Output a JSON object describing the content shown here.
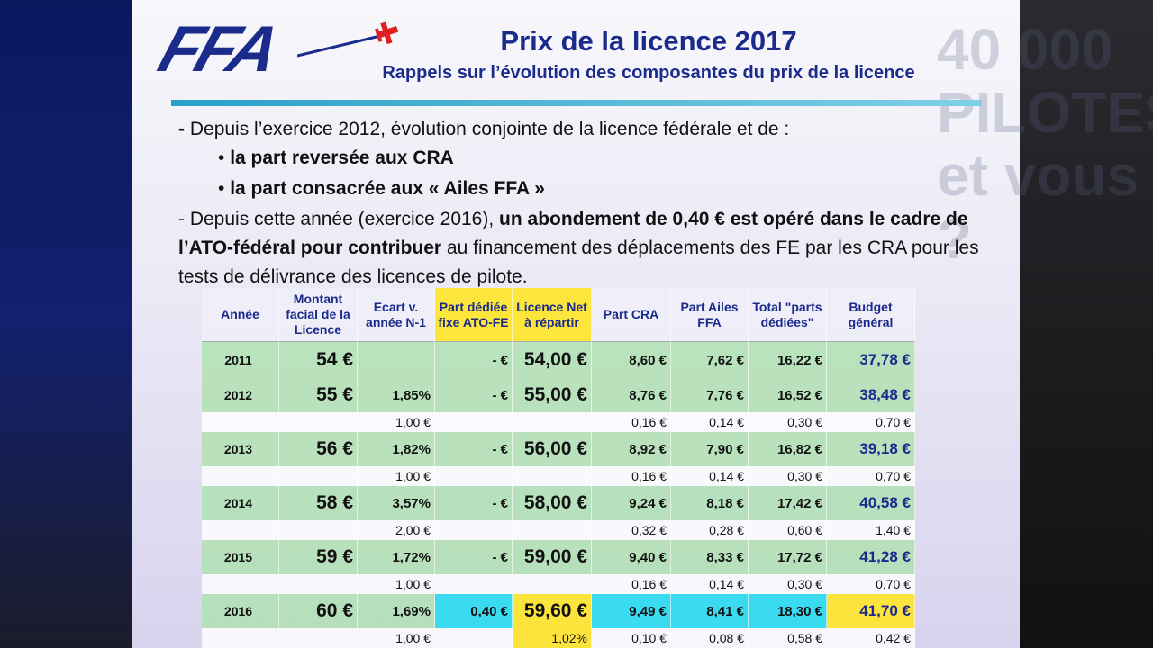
{
  "header": {
    "logo": "FFA",
    "title": "Prix de la licence 2017",
    "subtitle": "Rappels sur l’évolution des composantes du prix de la licence"
  },
  "backdrop": [
    "40 000",
    "PILOTES",
    "et vous ?"
  ],
  "intro": {
    "lead": "-",
    "text": "Depuis l’exercice 2012, évolution conjointe de la licence fédérale et de :"
  },
  "bullets": [
    "la part reversée aux CRA",
    "la part consacrée aux « Ailes FFA »"
  ],
  "note": {
    "plain1": "- Depuis cette année (exercice 2016), ",
    "bold": "un abondement de 0,40 € est opéré dans le cadre de l’ATO-fédéral pour contribuer",
    "plain2": " au financement des déplacements des FE par les CRA pour les tests de délivrance des licences de pilote."
  },
  "table": {
    "columns": [
      "Année",
      "Montant facial de la Licence",
      "Ecart v. année N-1",
      "Part dédiée fixe ATO-FE",
      "Licence Net à répartir",
      "Part CRA",
      "Part Ailes FFA",
      "Total \"parts dédiées\"",
      "Budget général"
    ],
    "rows": [
      {
        "main": [
          "2011",
          "54 €",
          null,
          "- €",
          "54,00 €",
          "8,60 €",
          "7,62 €",
          "16,22 €",
          "37,78 €"
        ]
      },
      {
        "main": [
          "2012",
          "55 €",
          "1,85%",
          "- €",
          "55,00 €",
          "8,76 €",
          "7,76 €",
          "16,52 €",
          "38,48 €"
        ],
        "sub": [
          null,
          null,
          "1,00 €",
          null,
          null,
          "0,16 €",
          "0,14 €",
          "0,30 €",
          "0,70 €"
        ]
      },
      {
        "main": [
          "2013",
          "56 €",
          "1,82%",
          "- €",
          "56,00 €",
          "8,92 €",
          "7,90 €",
          "16,82 €",
          "39,18 €"
        ],
        "sub": [
          null,
          null,
          "1,00 €",
          null,
          null,
          "0,16 €",
          "0,14 €",
          "0,30 €",
          "0,70 €"
        ]
      },
      {
        "main": [
          "2014",
          "58 €",
          "3,57%",
          "- €",
          "58,00 €",
          "9,24 €",
          "8,18 €",
          "17,42 €",
          "40,58 €"
        ],
        "sub": [
          null,
          null,
          "2,00 €",
          null,
          null,
          "0,32 €",
          "0,28 €",
          "0,60 €",
          "1,40 €"
        ]
      },
      {
        "main": [
          "2015",
          "59 €",
          "1,72%",
          "- €",
          "59,00 €",
          "9,40 €",
          "8,33 €",
          "17,72 €",
          "41,28 €"
        ],
        "sub": [
          null,
          null,
          "1,00 €",
          null,
          null,
          "0,16 €",
          "0,14 €",
          "0,30 €",
          "0,70 €"
        ]
      },
      {
        "main": [
          "2016",
          "60 €",
          "1,69%",
          "0,40 €",
          "59,60 €",
          "9,49 €",
          "8,41 €",
          "18,30 €",
          "41,70 €"
        ],
        "sub": [
          null,
          null,
          "1,00 €",
          null,
          "1,02%",
          "0,10 €",
          "0,08 €",
          "0,58 €",
          "0,42 €"
        ]
      }
    ]
  }
}
